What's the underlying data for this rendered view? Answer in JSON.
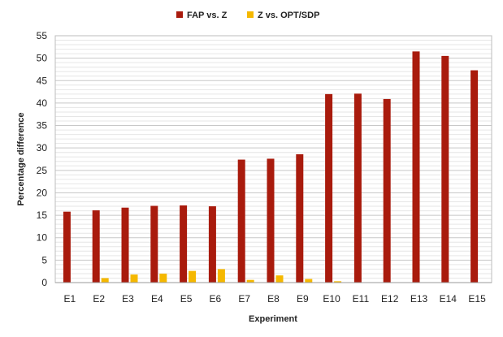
{
  "chart_data": {
    "type": "bar",
    "categories": [
      "E1",
      "E2",
      "E3",
      "E4",
      "E5",
      "E6",
      "E7",
      "E8",
      "E9",
      "E10",
      "E11",
      "E12",
      "E13",
      "E14",
      "E15"
    ],
    "series": [
      {
        "name": "FAP vs. Z",
        "color": "#a91b0d",
        "values": [
          15.8,
          16.1,
          16.7,
          17.1,
          17.2,
          17.0,
          27.4,
          27.6,
          28.6,
          42.0,
          42.1,
          40.9,
          51.5,
          50.5,
          47.3
        ]
      },
      {
        "name": "Z vs. OPT/SDP",
        "color": "#f5b800",
        "values": [
          0,
          1.0,
          1.8,
          2.0,
          2.6,
          3.0,
          0.6,
          1.6,
          0.8,
          0.3,
          0,
          0,
          0,
          0,
          0
        ]
      }
    ],
    "xlabel": "Experiment",
    "ylabel": "Percentage difference",
    "ylim": [
      0,
      55
    ],
    "yticks": [
      0,
      5,
      10,
      15,
      20,
      25,
      30,
      35,
      40,
      45,
      50,
      55
    ],
    "grid": true,
    "legend": "top"
  }
}
